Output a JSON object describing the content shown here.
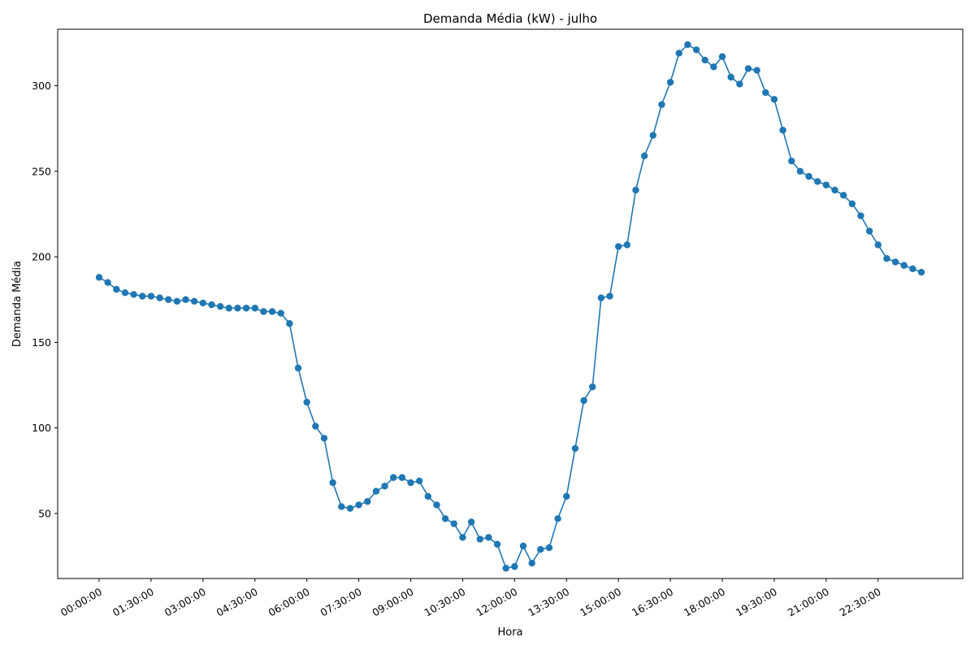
{
  "chart_data": {
    "type": "line",
    "title": "Demanda Média (kW) - julho",
    "xlabel": "Hora",
    "ylabel": "Demanda Média",
    "color": "#1f77b4",
    "marker": "circle",
    "grid": false,
    "y_ticks": [
      50,
      100,
      150,
      200,
      250,
      300
    ],
    "x_tick_labels": [
      "00:00:00",
      "01:30:00",
      "03:00:00",
      "04:30:00",
      "06:00:00",
      "07:30:00",
      "09:00:00",
      "10:30:00",
      "12:00:00",
      "13:30:00",
      "15:00:00",
      "16:30:00",
      "18:00:00",
      "19:30:00",
      "21:00:00",
      "22:30:00"
    ],
    "x": [
      "00:00:00",
      "00:15:00",
      "00:30:00",
      "00:45:00",
      "01:00:00",
      "01:15:00",
      "01:30:00",
      "01:45:00",
      "02:00:00",
      "02:15:00",
      "02:30:00",
      "02:45:00",
      "03:00:00",
      "03:15:00",
      "03:30:00",
      "03:45:00",
      "04:00:00",
      "04:15:00",
      "04:30:00",
      "04:45:00",
      "05:00:00",
      "05:15:00",
      "05:30:00",
      "05:45:00",
      "06:00:00",
      "06:15:00",
      "06:30:00",
      "06:45:00",
      "07:00:00",
      "07:15:00",
      "07:30:00",
      "07:45:00",
      "08:00:00",
      "08:15:00",
      "08:30:00",
      "08:45:00",
      "09:00:00",
      "09:15:00",
      "09:30:00",
      "09:45:00",
      "10:00:00",
      "10:15:00",
      "10:30:00",
      "10:45:00",
      "11:00:00",
      "11:15:00",
      "11:30:00",
      "11:45:00",
      "12:00:00",
      "12:15:00",
      "12:30:00",
      "12:45:00",
      "13:00:00",
      "13:15:00",
      "13:30:00",
      "13:45:00",
      "14:00:00",
      "14:15:00",
      "14:30:00",
      "14:45:00",
      "15:00:00",
      "15:15:00",
      "15:30:00",
      "15:45:00",
      "16:00:00",
      "16:15:00",
      "16:30:00",
      "16:45:00",
      "17:00:00",
      "17:15:00",
      "17:30:00",
      "17:45:00",
      "18:00:00",
      "18:15:00",
      "18:30:00",
      "18:45:00",
      "19:00:00",
      "19:15:00",
      "19:30:00",
      "19:45:00",
      "20:00:00",
      "20:15:00",
      "20:30:00",
      "20:45:00",
      "21:00:00",
      "21:15:00",
      "21:30:00",
      "21:45:00",
      "22:00:00",
      "22:15:00",
      "22:30:00",
      "22:45:00",
      "23:00:00",
      "23:15:00",
      "23:30:00",
      "23:45:00"
    ],
    "values": [
      188,
      185,
      181,
      179,
      178,
      177,
      177,
      176,
      175,
      174,
      175,
      174,
      173,
      172,
      171,
      170,
      170,
      170,
      170,
      168,
      168,
      167,
      161,
      135,
      115,
      101,
      94,
      68,
      54,
      53,
      55,
      57,
      63,
      66,
      71,
      71,
      68,
      69,
      60,
      55,
      47,
      44,
      36,
      45,
      35,
      36,
      32,
      18,
      19,
      31,
      21,
      29,
      30,
      47,
      60,
      88,
      116,
      124,
      176,
      177,
      206,
      207,
      239,
      259,
      271,
      289,
      302,
      319,
      324,
      321,
      315,
      311,
      317,
      305,
      301,
      310,
      309,
      296,
      292,
      274,
      256,
      250,
      247,
      244,
      242,
      239,
      236,
      231,
      224,
      215,
      207,
      199,
      197,
      195,
      193,
      191
    ]
  }
}
